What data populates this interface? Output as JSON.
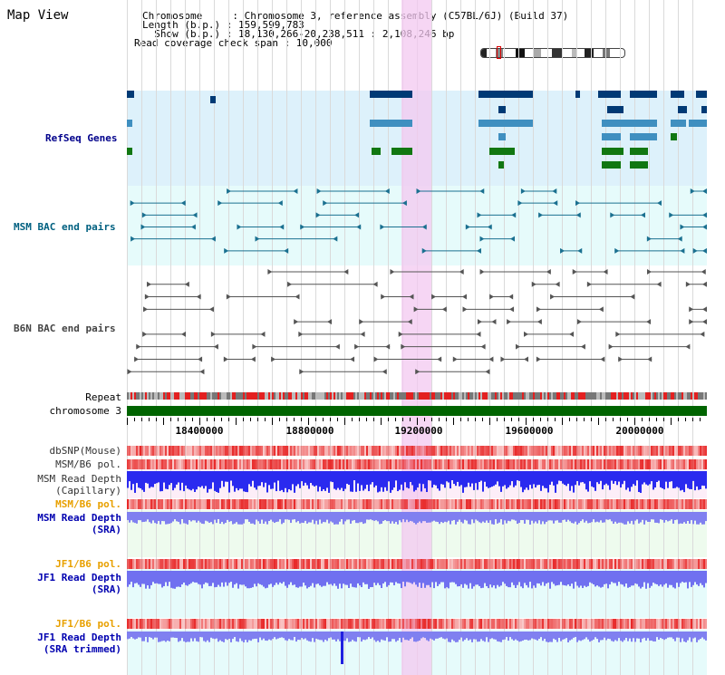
{
  "page": {
    "title": "Map View"
  },
  "header": {
    "lines": [
      "Chromosome     : Chromosome 3, reference assembly (C57BL/6J) (Build 37)",
      "Length (b.p.) : 159,599,783",
      "  Show (b.p.) : 18,130,266-20,238,511 : 2,108,246 bp",
      "Read coverage check span : 10,000"
    ]
  },
  "tracks": {
    "refseq": {
      "label": "RefSeq Genes",
      "color": "#00008b",
      "bg": "#ddf1fb"
    },
    "msm_bac": {
      "label": "MSM BAC end pairs",
      "color": "#006080",
      "bg": "#e6fbfb"
    },
    "b6n_bac": {
      "label": "B6N BAC end pairs",
      "color": "#444444",
      "bg": "#ffffff"
    },
    "repeat": {
      "label": "Repeat"
    },
    "chromosome": {
      "label": "chromosome 3",
      "color": "#006400"
    },
    "dbsnp": {
      "label": "dbSNP(Mouse)"
    },
    "msm_b6_pol_1": {
      "label": "MSM/B6 pol."
    },
    "msm_read_depth_cap": {
      "label_1": "MSM Read Depth",
      "label_2": "(Capillary)"
    },
    "msm_b6_pol_2": {
      "label": "MSM/B6 pol.",
      "color": "#e8a000"
    },
    "msm_read_depth_sra": {
      "label_1": "MSM Read Depth",
      "label_2": "(SRA)",
      "color": "#0000b0"
    },
    "jf1_b6_pol_1": {
      "label": "JF1/B6 pol.",
      "color": "#e8a000"
    },
    "jf1_read_depth_sra": {
      "label_1": "JF1 Read Depth",
      "label_2": "(SRA)",
      "color": "#0000b0"
    },
    "jf1_b6_pol_2": {
      "label": "JF1/B6 pol.",
      "color": "#e8a000"
    },
    "jf1_read_depth_trim": {
      "label_1": "JF1 Read Depth",
      "label_2": "(SRA trimmed)",
      "color": "#0000b0"
    }
  },
  "axis": {
    "ticks": [
      "18400000",
      "18800000",
      "19200000",
      "19600000",
      "20000000"
    ]
  },
  "colors": {
    "highlight": "#f3c8f0",
    "refseq_dark": "#003a75",
    "refseq_mid": "#3f8fc0",
    "refseq_green": "#117711",
    "msm_line": "#1a7090",
    "b6n_line": "#555555",
    "snp_red": "#e83030",
    "depth_blue": "#2a2aef"
  }
}
